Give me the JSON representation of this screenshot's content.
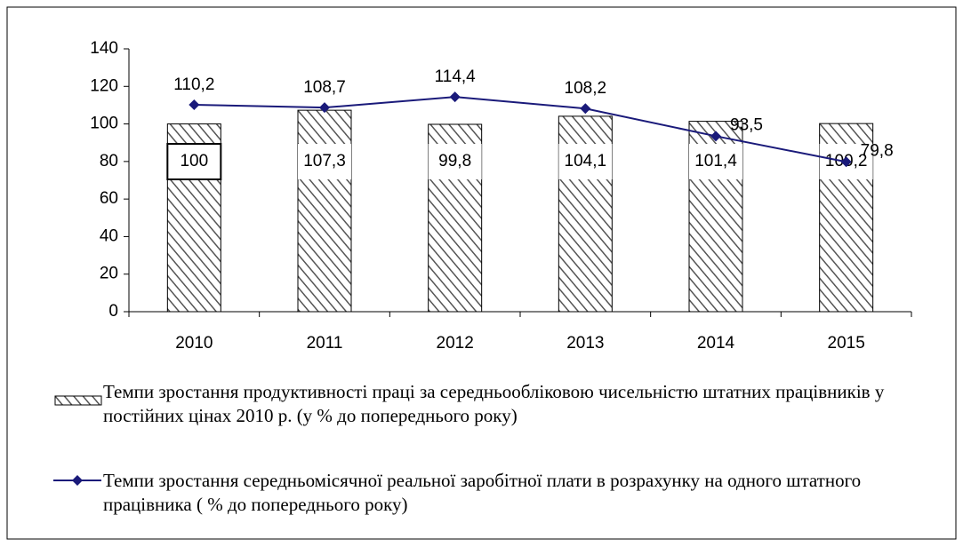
{
  "chart_data": {
    "type": "bar_line",
    "categories": [
      "2010",
      "2011",
      "2012",
      "2013",
      "2014",
      "2015"
    ],
    "series": [
      {
        "name": "Темпи зростання продуктивності праці за середньообліковою чисельністю штатних працівників у постійних цінах 2010 р.  (у % до попереднього року)",
        "type": "bar",
        "color": "#555555",
        "values": [
          100,
          107.3,
          99.8,
          104.1,
          101.4,
          100.2
        ],
        "value_labels": [
          "100",
          "107,3",
          "99,8",
          "104,1",
          "101,4",
          "100,2"
        ]
      },
      {
        "name": "Темпи зростання середньомісячної реальної заробітної плати в розрахунку на одного штатного працівника  ( % до попереднього року)",
        "type": "line",
        "color": "#1a1a7a",
        "values": [
          110.2,
          108.7,
          114.4,
          108.2,
          93.5,
          79.8
        ],
        "value_labels": [
          "110,2",
          "108,7",
          "114,4",
          "108,2",
          "93,5",
          "79,8"
        ]
      }
    ],
    "ylim": [
      0,
      140
    ],
    "yticks": [
      0,
      20,
      40,
      60,
      80,
      100,
      120,
      140
    ]
  }
}
